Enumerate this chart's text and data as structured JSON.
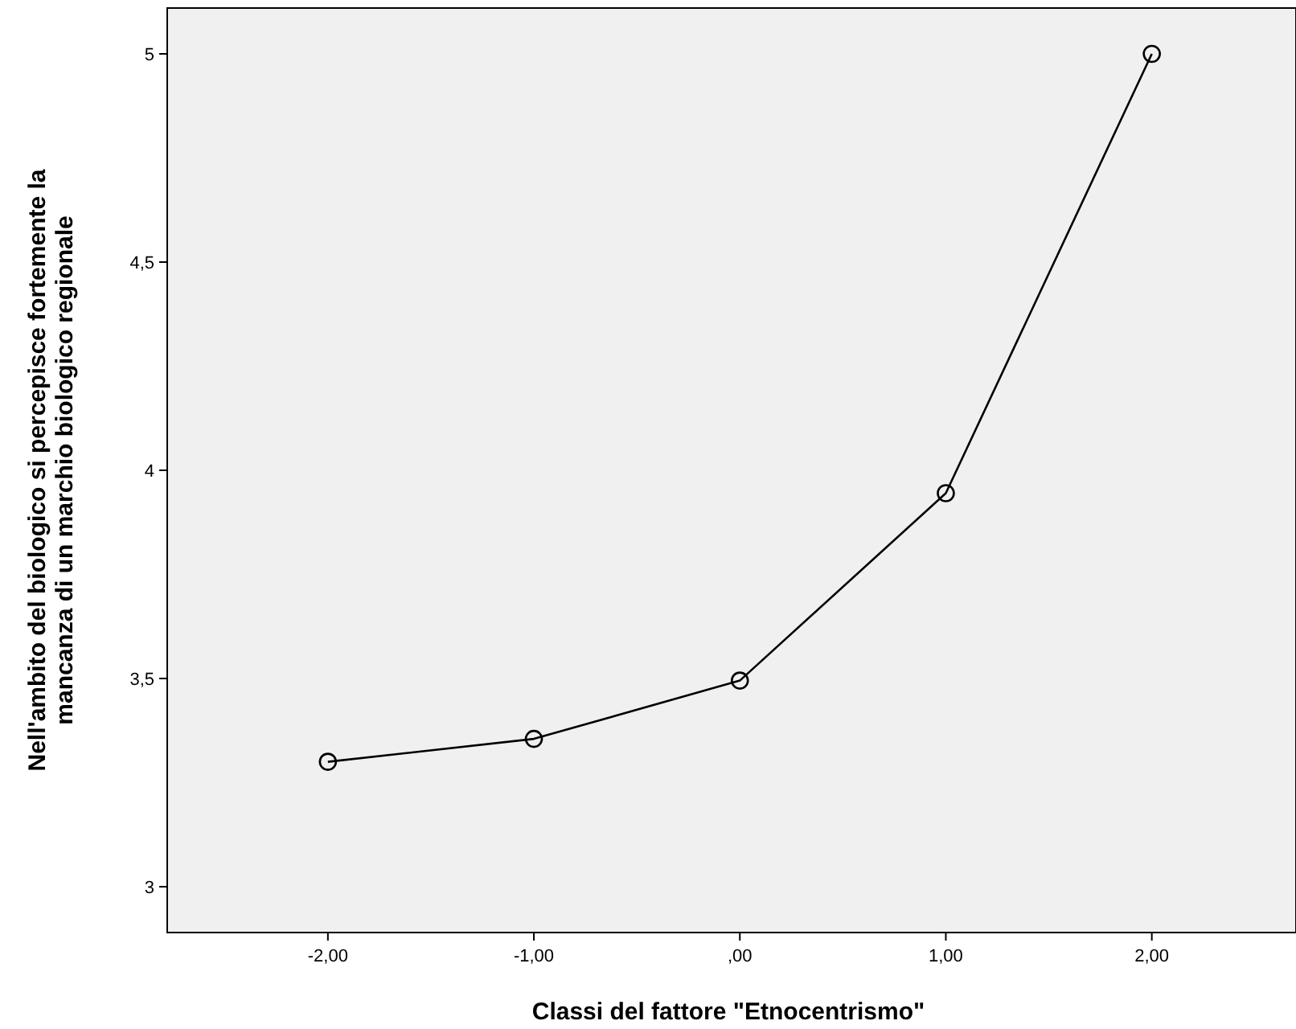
{
  "chart_data": {
    "type": "line",
    "xlabel": "Classi del fattore \"Etnocentrismo\"",
    "ylabel": "Nell'ambito del biologico si percepisce fortemente la mancanza di un marchio biologico regionale",
    "x": [
      -2,
      -1,
      0,
      1,
      2
    ],
    "series": [
      {
        "color": "#000000",
        "values": [
          3.3,
          3.355,
          3.495,
          3.945,
          5.0
        ]
      }
    ],
    "xlim": [
      -2.78,
      2.7
    ],
    "ylim": [
      2.89,
      5.11
    ],
    "xticks": [
      {
        "value": -2,
        "label": "-2,00"
      },
      {
        "value": -1,
        "label": "-1,00"
      },
      {
        "value": 0,
        "label": ",00"
      },
      {
        "value": 1,
        "label": "1,00"
      },
      {
        "value": 2,
        "label": "2,00"
      }
    ],
    "yticks": [
      3,
      {
        "value": 3.5,
        "label": "3,5"
      },
      4,
      {
        "value": 4.5,
        "label": "4,5"
      },
      5
    ],
    "marker": "circle",
    "line_style": "solid",
    "grid": false
  }
}
